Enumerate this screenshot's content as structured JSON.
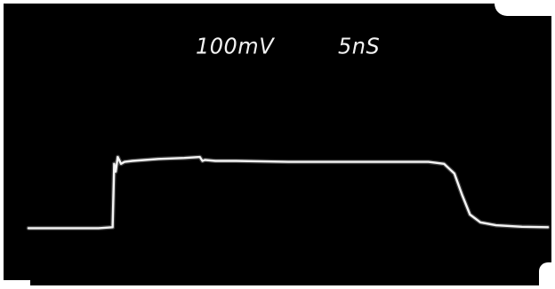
{
  "chart_data": {
    "type": "line",
    "readouts": {
      "volts_per_div": "100mV",
      "time_per_div": "5nS"
    },
    "ylim": [
      0,
      1
    ],
    "xlim": [
      0,
      10
    ],
    "grid": false,
    "series": [
      {
        "x": [
          0.0,
          1.35,
          1.62,
          1.65,
          1.68,
          1.72,
          1.78,
          1.85,
          2.0,
          2.5,
          3.0,
          3.3,
          3.35,
          3.4,
          3.6,
          4.0,
          5.0,
          6.0,
          7.0,
          7.7,
          8.0,
          8.2,
          8.35,
          8.5,
          8.7,
          9.0,
          9.5,
          10.0
        ],
        "y": [
          0.06,
          0.06,
          0.07,
          0.72,
          0.64,
          0.79,
          0.72,
          0.74,
          0.75,
          0.77,
          0.78,
          0.79,
          0.75,
          0.76,
          0.75,
          0.75,
          0.74,
          0.74,
          0.74,
          0.74,
          0.72,
          0.62,
          0.4,
          0.2,
          0.12,
          0.09,
          0.075,
          0.07
        ]
      }
    ]
  },
  "colors": {
    "screen": "#000000",
    "trace": "#f5f5f5",
    "text": "#f2f2f2"
  }
}
